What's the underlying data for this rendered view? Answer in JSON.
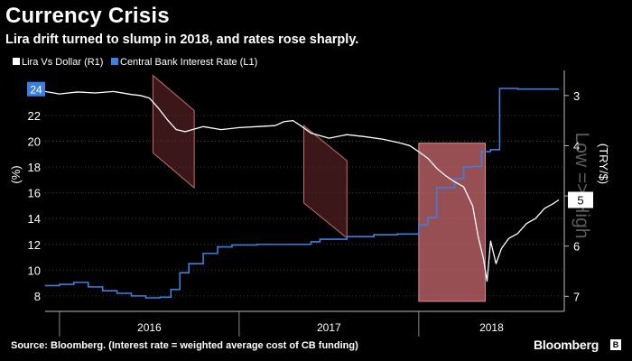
{
  "header": {
    "title": "Currency Crisis",
    "subtitle": "Lira drift turned to slump in 2018, and rates rose sharply."
  },
  "footer": {
    "source": "Source: Bloomberg. (Interest rate = weighted average cost of CB funding)",
    "brand": "Bloomberg"
  },
  "chart_data": {
    "type": "line",
    "title": "Currency Crisis",
    "subtitle": "Lira drift turned to slump in 2018, and rates rose sharply.",
    "ylabel_left": "(%)",
    "ylabel_right": "(TRY/$)",
    "right_axis_note": "Low => High",
    "y_left_ticks": [
      "8",
      "10",
      "12",
      "14",
      "16",
      "18",
      "20",
      "22"
    ],
    "y_left_range": [
      6.8,
      25.5
    ],
    "y_left_current_label": "24",
    "y_right_ticks": [
      "3",
      "4",
      "5",
      "6",
      "7"
    ],
    "y_right_range": [
      2.5,
      7.3
    ],
    "y_right_inverted": true,
    "y_right_current_label": "5",
    "x_labels": [
      "2016",
      "2017",
      "2018"
    ],
    "x_range": [
      2015.92,
      2018.81
    ],
    "legend": {
      "placement": "top-left"
    },
    "colors": {
      "lira": "#ffffff",
      "rate": "#3d7fe0",
      "shade_fill": "#6e2a2f",
      "shade_stroke": "#c56a70",
      "highlight_fill": "#c96a70"
    },
    "series": [
      {
        "name": "Lira Vs Dollar (R1)",
        "axis": "right",
        "x": [
          2015.92,
          2016.0,
          2016.1,
          2016.2,
          2016.3,
          2016.4,
          2016.45,
          2016.5,
          2016.55,
          2016.6,
          2016.65,
          2016.7,
          2016.8,
          2016.9,
          2017.0,
          2017.1,
          2017.2,
          2017.25,
          2017.3,
          2017.35,
          2017.4,
          2017.5,
          2017.6,
          2017.7,
          2017.8,
          2017.9,
          2017.95,
          2018.0,
          2018.05,
          2018.1,
          2018.15,
          2018.2,
          2018.25,
          2018.3,
          2018.33,
          2018.36,
          2018.38,
          2018.4,
          2018.43,
          2018.46,
          2018.5,
          2018.55,
          2018.6,
          2018.65,
          2018.7,
          2018.75,
          2018.78
        ],
        "values": [
          2.92,
          2.97,
          2.93,
          2.95,
          2.92,
          2.98,
          3.0,
          3.05,
          3.25,
          3.48,
          3.68,
          3.72,
          3.62,
          3.68,
          3.64,
          3.62,
          3.6,
          3.52,
          3.5,
          3.62,
          3.75,
          3.85,
          3.78,
          3.82,
          3.87,
          3.95,
          4.0,
          4.12,
          4.25,
          4.45,
          4.6,
          4.72,
          4.82,
          5.2,
          5.8,
          6.25,
          6.7,
          5.9,
          6.35,
          6.05,
          5.85,
          5.75,
          5.55,
          5.45,
          5.25,
          5.15,
          5.08
        ]
      },
      {
        "name": "Central Bank Interest Rate (L1)",
        "axis": "left",
        "x": [
          2015.92,
          2016.0,
          2016.08,
          2016.16,
          2016.24,
          2016.32,
          2016.4,
          2016.48,
          2016.56,
          2016.62,
          2016.67,
          2016.72,
          2016.8,
          2016.88,
          2016.96,
          2017.1,
          2017.25,
          2017.4,
          2017.45,
          2017.6,
          2017.75,
          2017.88,
          2017.96,
          2018.0,
          2018.05,
          2018.1,
          2018.2,
          2018.25,
          2018.3,
          2018.35,
          2018.4,
          2018.45,
          2018.5,
          2018.55,
          2018.6,
          2018.65,
          2018.7,
          2018.75,
          2018.78
        ],
        "values": [
          8.8,
          8.9,
          9.05,
          8.7,
          8.4,
          8.2,
          8.0,
          7.85,
          7.9,
          8.5,
          9.8,
          10.5,
          11.3,
          11.8,
          11.95,
          12.0,
          12.0,
          12.2,
          12.4,
          12.6,
          12.75,
          12.8,
          12.8,
          13.5,
          14.1,
          16.4,
          17.1,
          18.0,
          18.05,
          19.2,
          19.35,
          24.1,
          24.1,
          24.05,
          24.05,
          24.05,
          24.05,
          24.05,
          24.05
        ]
      }
    ],
    "shaded_periods": [
      {
        "x": [
          2016.52,
          2016.75
        ],
        "right": [
          2.6,
          3.3
        ],
        "left_offset": 6
      },
      {
        "x": [
          2017.36,
          2017.6
        ],
        "right": [
          3.6,
          4.3
        ],
        "left_offset": 6
      }
    ],
    "highlight_period": {
      "x": [
        2018.0,
        2018.37
      ],
      "y_right_range": [
        3.95,
        7.1
      ]
    }
  }
}
